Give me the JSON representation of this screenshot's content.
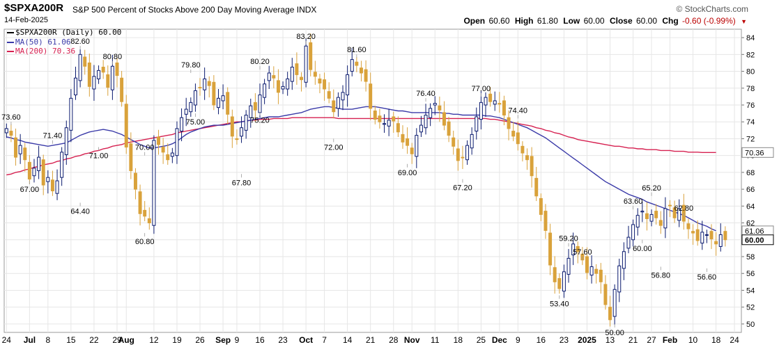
{
  "header": {
    "symbol": "$SPXA200R",
    "description": "S&P 500 Percent of Stocks Above 200 Day Moving Average INDX",
    "date": "14-Feb-2025",
    "brand": "© StockCharts.com",
    "open_label": "Open",
    "open": "60.60",
    "high_label": "High",
    "high": "61.80",
    "low_label": "Low",
    "low": "60.00",
    "close_label": "Close",
    "close": "60.00",
    "chg_label": "Chg",
    "chg": "-0.60 (-0.99%)",
    "down_arrow": "▼"
  },
  "legend": {
    "price": "$SPXA200R (Daily) 60.00",
    "ma50": "MA(50) 61.06",
    "ma200": "MA(200) 70.36"
  },
  "colors": {
    "up": "#0a1a6e",
    "down": "#d9a23b",
    "ma50": "#3a3aa8",
    "ma200": "#d62050",
    "grid": "#e6e6e6",
    "price_tag_bg": "#ffffff"
  },
  "chart_data": {
    "type": "candlestick",
    "title": "$SPXA200R",
    "ylim": [
      49,
      85
    ],
    "y_ticks": [
      50,
      52,
      54,
      56,
      58,
      60,
      62,
      64,
      66,
      68,
      70,
      72,
      74,
      76,
      78,
      80,
      82,
      84
    ],
    "x_ticks": [
      {
        "i": 0,
        "label": "24"
      },
      {
        "i": 5,
        "label": "Jul"
      },
      {
        "i": 9,
        "label": "8"
      },
      {
        "i": 14,
        "label": "15"
      },
      {
        "i": 19,
        "label": "22"
      },
      {
        "i": 24,
        "label": "29"
      },
      {
        "i": 26,
        "label": "Aug"
      },
      {
        "i": 32,
        "label": "12"
      },
      {
        "i": 37,
        "label": "19"
      },
      {
        "i": 42,
        "label": "26"
      },
      {
        "i": 47,
        "label": "Sep"
      },
      {
        "i": 50,
        "label": "9"
      },
      {
        "i": 55,
        "label": "16"
      },
      {
        "i": 60,
        "label": "23"
      },
      {
        "i": 65,
        "label": "Oct"
      },
      {
        "i": 69,
        "label": "7"
      },
      {
        "i": 74,
        "label": "14"
      },
      {
        "i": 79,
        "label": "21"
      },
      {
        "i": 84,
        "label": "28"
      },
      {
        "i": 88,
        "label": "Nov"
      },
      {
        "i": 93,
        "label": "11"
      },
      {
        "i": 98,
        "label": "18"
      },
      {
        "i": 103,
        "label": "25"
      },
      {
        "i": 107,
        "label": "Dec"
      },
      {
        "i": 111,
        "label": "9"
      },
      {
        "i": 116,
        "label": "16"
      },
      {
        "i": 121,
        "label": "23"
      },
      {
        "i": 126,
        "label": "2025"
      },
      {
        "i": 131,
        "label": "13"
      },
      {
        "i": 136,
        "label": "21"
      },
      {
        "i": 140,
        "label": "27"
      },
      {
        "i": 144,
        "label": "Feb"
      },
      {
        "i": 149,
        "label": "10"
      },
      {
        "i": 154,
        "label": "18"
      },
      {
        "i": 158,
        "label": "24"
      }
    ],
    "closes": [
      73.2,
      72.4,
      69.8,
      71.2,
      69.5,
      67.2,
      68.5,
      69.8,
      66.5,
      67.4,
      65.8,
      67.0,
      70.4,
      73.3,
      76.8,
      79.2,
      82.0,
      80.6,
      78.2,
      79.4,
      80.1,
      79.9,
      78.1,
      80.6,
      79.5,
      76.4,
      71.0,
      68.2,
      66.0,
      63.1,
      62.8,
      62.0,
      71.8,
      71.3,
      70.4,
      69.5,
      70.3,
      73.2,
      74.5,
      75.5,
      76.3,
      77.7,
      78.1,
      79.1,
      78.3,
      76.0,
      76.8,
      77.1,
      74.9,
      72.3,
      71.9,
      73.3,
      74.8,
      75.9,
      75.4,
      77.2,
      78.5,
      79.8,
      79.2,
      77.5,
      78.2,
      79.1,
      80.5,
      79.6,
      79.0,
      83.0,
      80.2,
      79.4,
      78.6,
      77.9,
      76.8,
      75.2,
      76.9,
      77.5,
      79.6,
      81.4,
      80.7,
      79.8,
      78.8,
      75.6,
      74.3,
      74.0,
      73.8,
      74.2,
      74.1,
      72.8,
      71.6,
      71.2,
      70.2,
      72.4,
      73.6,
      74.8,
      75.6,
      76.2,
      75.4,
      73.6,
      72.4,
      71.1,
      69.4,
      69.8,
      71.2,
      72.5,
      74.6,
      76.3,
      76.9,
      76.4,
      76.5,
      76.1,
      74.8,
      73.2,
      72.3,
      71.4,
      70.3,
      69.5,
      67.6,
      65.2,
      63.0,
      61.1,
      57.0,
      55.0,
      54.2,
      56.2,
      57.8,
      59.5,
      58.6,
      57.6,
      56.1,
      56.8,
      56.0,
      55.0,
      52.3,
      50.5,
      54.1,
      56.9,
      58.6,
      60.3,
      61.8,
      62.9,
      63.4,
      62.5,
      63.0,
      62.6,
      61.7,
      63.7,
      64.1,
      62.6,
      63.7,
      62.2,
      61.3,
      60.8,
      59.9,
      60.9,
      60.6,
      60.1,
      59.5,
      60.6,
      60.0
    ],
    "ma50": [
      72.2,
      72.1,
      71.9,
      71.8,
      71.6,
      71.5,
      71.4,
      71.3,
      71.2,
      71.1,
      71.2,
      71.3,
      71.4,
      71.5,
      71.8,
      72.1,
      72.4,
      72.6,
      72.8,
      72.9,
      73.0,
      73.1,
      73.0,
      72.9,
      72.7,
      72.5,
      72.2,
      71.9,
      71.6,
      71.3,
      71.1,
      70.9,
      70.9,
      71.0,
      71.1,
      71.2,
      71.4,
      71.7,
      72.1,
      72.5,
      72.8,
      73.0,
      73.2,
      73.4,
      73.5,
      73.6,
      73.6,
      73.6,
      73.7,
      73.8,
      73.9,
      74.0,
      74.1,
      74.2,
      74.3,
      74.4,
      74.5,
      74.6,
      74.6,
      74.6,
      74.7,
      74.8,
      74.9,
      75.0,
      75.1,
      75.3,
      75.5,
      75.6,
      75.7,
      75.8,
      75.8,
      75.7,
      75.6,
      75.5,
      75.5,
      75.5,
      75.6,
      75.7,
      75.8,
      75.8,
      75.8,
      75.7,
      75.6,
      75.5,
      75.4,
      75.3,
      75.3,
      75.2,
      75.1,
      75.1,
      75.1,
      75.1,
      75.1,
      75.1,
      75.1,
      75.0,
      75.0,
      74.9,
      74.9,
      74.8,
      74.8,
      74.8,
      74.8,
      74.8,
      74.7,
      74.7,
      74.6,
      74.5,
      74.3,
      74.1,
      73.9,
      73.7,
      73.5,
      73.3,
      73.0,
      72.7,
      72.4,
      72.1,
      71.7,
      71.3,
      70.9,
      70.5,
      70.1,
      69.7,
      69.3,
      68.9,
      68.5,
      68.1,
      67.7,
      67.3,
      66.9,
      66.6,
      66.3,
      66.0,
      65.7,
      65.4,
      65.2,
      65.0,
      64.8,
      64.5,
      64.3,
      64.1,
      63.9,
      63.7,
      63.5,
      63.3,
      63.1,
      62.9,
      62.6,
      62.3,
      62.0,
      61.8,
      61.6,
      61.3,
      61.06
    ],
    "ma200": [
      67.7,
      67.8,
      68.0,
      68.1,
      68.3,
      68.4,
      68.6,
      68.7,
      68.9,
      69.0,
      69.1,
      69.3,
      69.4,
      69.6,
      69.7,
      69.9,
      70.0,
      70.2,
      70.3,
      70.5,
      70.6,
      70.8,
      70.9,
      71.1,
      71.2,
      71.3,
      71.5,
      71.6,
      71.7,
      71.8,
      71.9,
      72.0,
      72.1,
      72.2,
      72.3,
      72.4,
      72.5,
      72.7,
      72.8,
      72.9,
      73.0,
      73.1,
      73.2,
      73.3,
      73.4,
      73.5,
      73.6,
      73.7,
      73.8,
      73.9,
      74.0,
      74.0,
      74.1,
      74.2,
      74.2,
      74.3,
      74.3,
      74.3,
      74.4,
      74.4,
      74.4,
      74.4,
      74.5,
      74.5,
      74.5,
      74.5,
      74.5,
      74.5,
      74.5,
      74.5,
      74.5,
      74.5,
      74.4,
      74.4,
      74.4,
      74.4,
      74.4,
      74.4,
      74.4,
      74.4,
      74.4,
      74.4,
      74.4,
      74.4,
      74.4,
      74.4,
      74.4,
      74.4,
      74.4,
      74.4,
      74.4,
      74.4,
      74.4,
      74.4,
      74.4,
      74.4,
      74.4,
      74.4,
      74.4,
      74.4,
      74.4,
      74.4,
      74.4,
      74.4,
      74.4,
      74.3,
      74.3,
      74.2,
      74.1,
      74.0,
      73.9,
      73.8,
      73.7,
      73.6,
      73.5,
      73.3,
      73.2,
      73.0,
      72.9,
      72.7,
      72.6,
      72.4,
      72.2,
      72.1,
      71.9,
      71.8,
      71.7,
      71.6,
      71.5,
      71.4,
      71.3,
      71.2,
      71.1,
      71.1,
      71.0,
      70.9,
      70.9,
      70.8,
      70.8,
      70.7,
      70.7,
      70.7,
      70.6,
      70.6,
      70.6,
      70.5,
      70.5,
      70.5,
      70.4,
      70.4,
      70.4,
      70.36,
      70.36,
      70.36,
      70.36
    ],
    "annotations": [
      {
        "i": 1,
        "v": 73.6,
        "label": "73.60",
        "pos": "above"
      },
      {
        "i": 10,
        "v": 71.4,
        "label": "71.40",
        "pos": "above"
      },
      {
        "i": 5,
        "v": 67.0,
        "label": "67.00",
        "pos": "below"
      },
      {
        "i": 16,
        "v": 82.6,
        "label": "82.60",
        "pos": "above"
      },
      {
        "i": 16,
        "v": 64.4,
        "label": "64.40",
        "pos": "below"
      },
      {
        "i": 23,
        "v": 80.8,
        "label": "80.80",
        "pos": "above"
      },
      {
        "i": 20,
        "v": 71.0,
        "label": "71.00",
        "pos": "below"
      },
      {
        "i": 30,
        "v": 70.0,
        "label": "70.00",
        "pos": "above"
      },
      {
        "i": 30,
        "v": 60.8,
        "label": "60.80",
        "pos": "below"
      },
      {
        "i": 40,
        "v": 79.8,
        "label": "79.80",
        "pos": "above"
      },
      {
        "i": 41,
        "v": 75.0,
        "label": "75.00",
        "pos": "below"
      },
      {
        "i": 55,
        "v": 80.2,
        "label": "80.20",
        "pos": "above"
      },
      {
        "i": 55,
        "v": 75.2,
        "label": "75.20",
        "pos": "below"
      },
      {
        "i": 65,
        "v": 83.2,
        "label": "83.20",
        "pos": "above"
      },
      {
        "i": 51,
        "v": 67.8,
        "label": "67.80",
        "pos": "below"
      },
      {
        "i": 76,
        "v": 81.6,
        "label": "81.60",
        "pos": "above"
      },
      {
        "i": 71,
        "v": 72.0,
        "label": "72.00",
        "pos": "below"
      },
      {
        "i": 91,
        "v": 76.4,
        "label": "76.40",
        "pos": "above"
      },
      {
        "i": 87,
        "v": 69.0,
        "label": "69.00",
        "pos": "below"
      },
      {
        "i": 103,
        "v": 77.0,
        "label": "77.00",
        "pos": "above"
      },
      {
        "i": 111,
        "v": 74.4,
        "label": "74.40",
        "pos": "above"
      },
      {
        "i": 99,
        "v": 67.2,
        "label": "67.20",
        "pos": "below"
      },
      {
        "i": 122,
        "v": 59.2,
        "label": "59.20",
        "pos": "above"
      },
      {
        "i": 120,
        "v": 53.4,
        "label": "53.40",
        "pos": "below"
      },
      {
        "i": 125,
        "v": 57.6,
        "label": "57.60",
        "pos": "above"
      },
      {
        "i": 132,
        "v": 50.0,
        "label": "50.00",
        "pos": "below"
      },
      {
        "i": 136,
        "v": 63.6,
        "label": "63.60",
        "pos": "above"
      },
      {
        "i": 140,
        "v": 65.2,
        "label": "65.20",
        "pos": "above"
      },
      {
        "i": 138,
        "v": 60.0,
        "label": "60.00",
        "pos": "below"
      },
      {
        "i": 147,
        "v": 62.8,
        "label": "62.80",
        "pos": "above"
      },
      {
        "i": 142,
        "v": 56.8,
        "label": "56.80",
        "pos": "below"
      },
      {
        "i": 152,
        "v": 56.6,
        "label": "56.60",
        "pos": "below"
      }
    ],
    "tags": {
      "ma50_label": "61.06",
      "ma200_label": "70.36",
      "close_label": "60.00"
    }
  }
}
